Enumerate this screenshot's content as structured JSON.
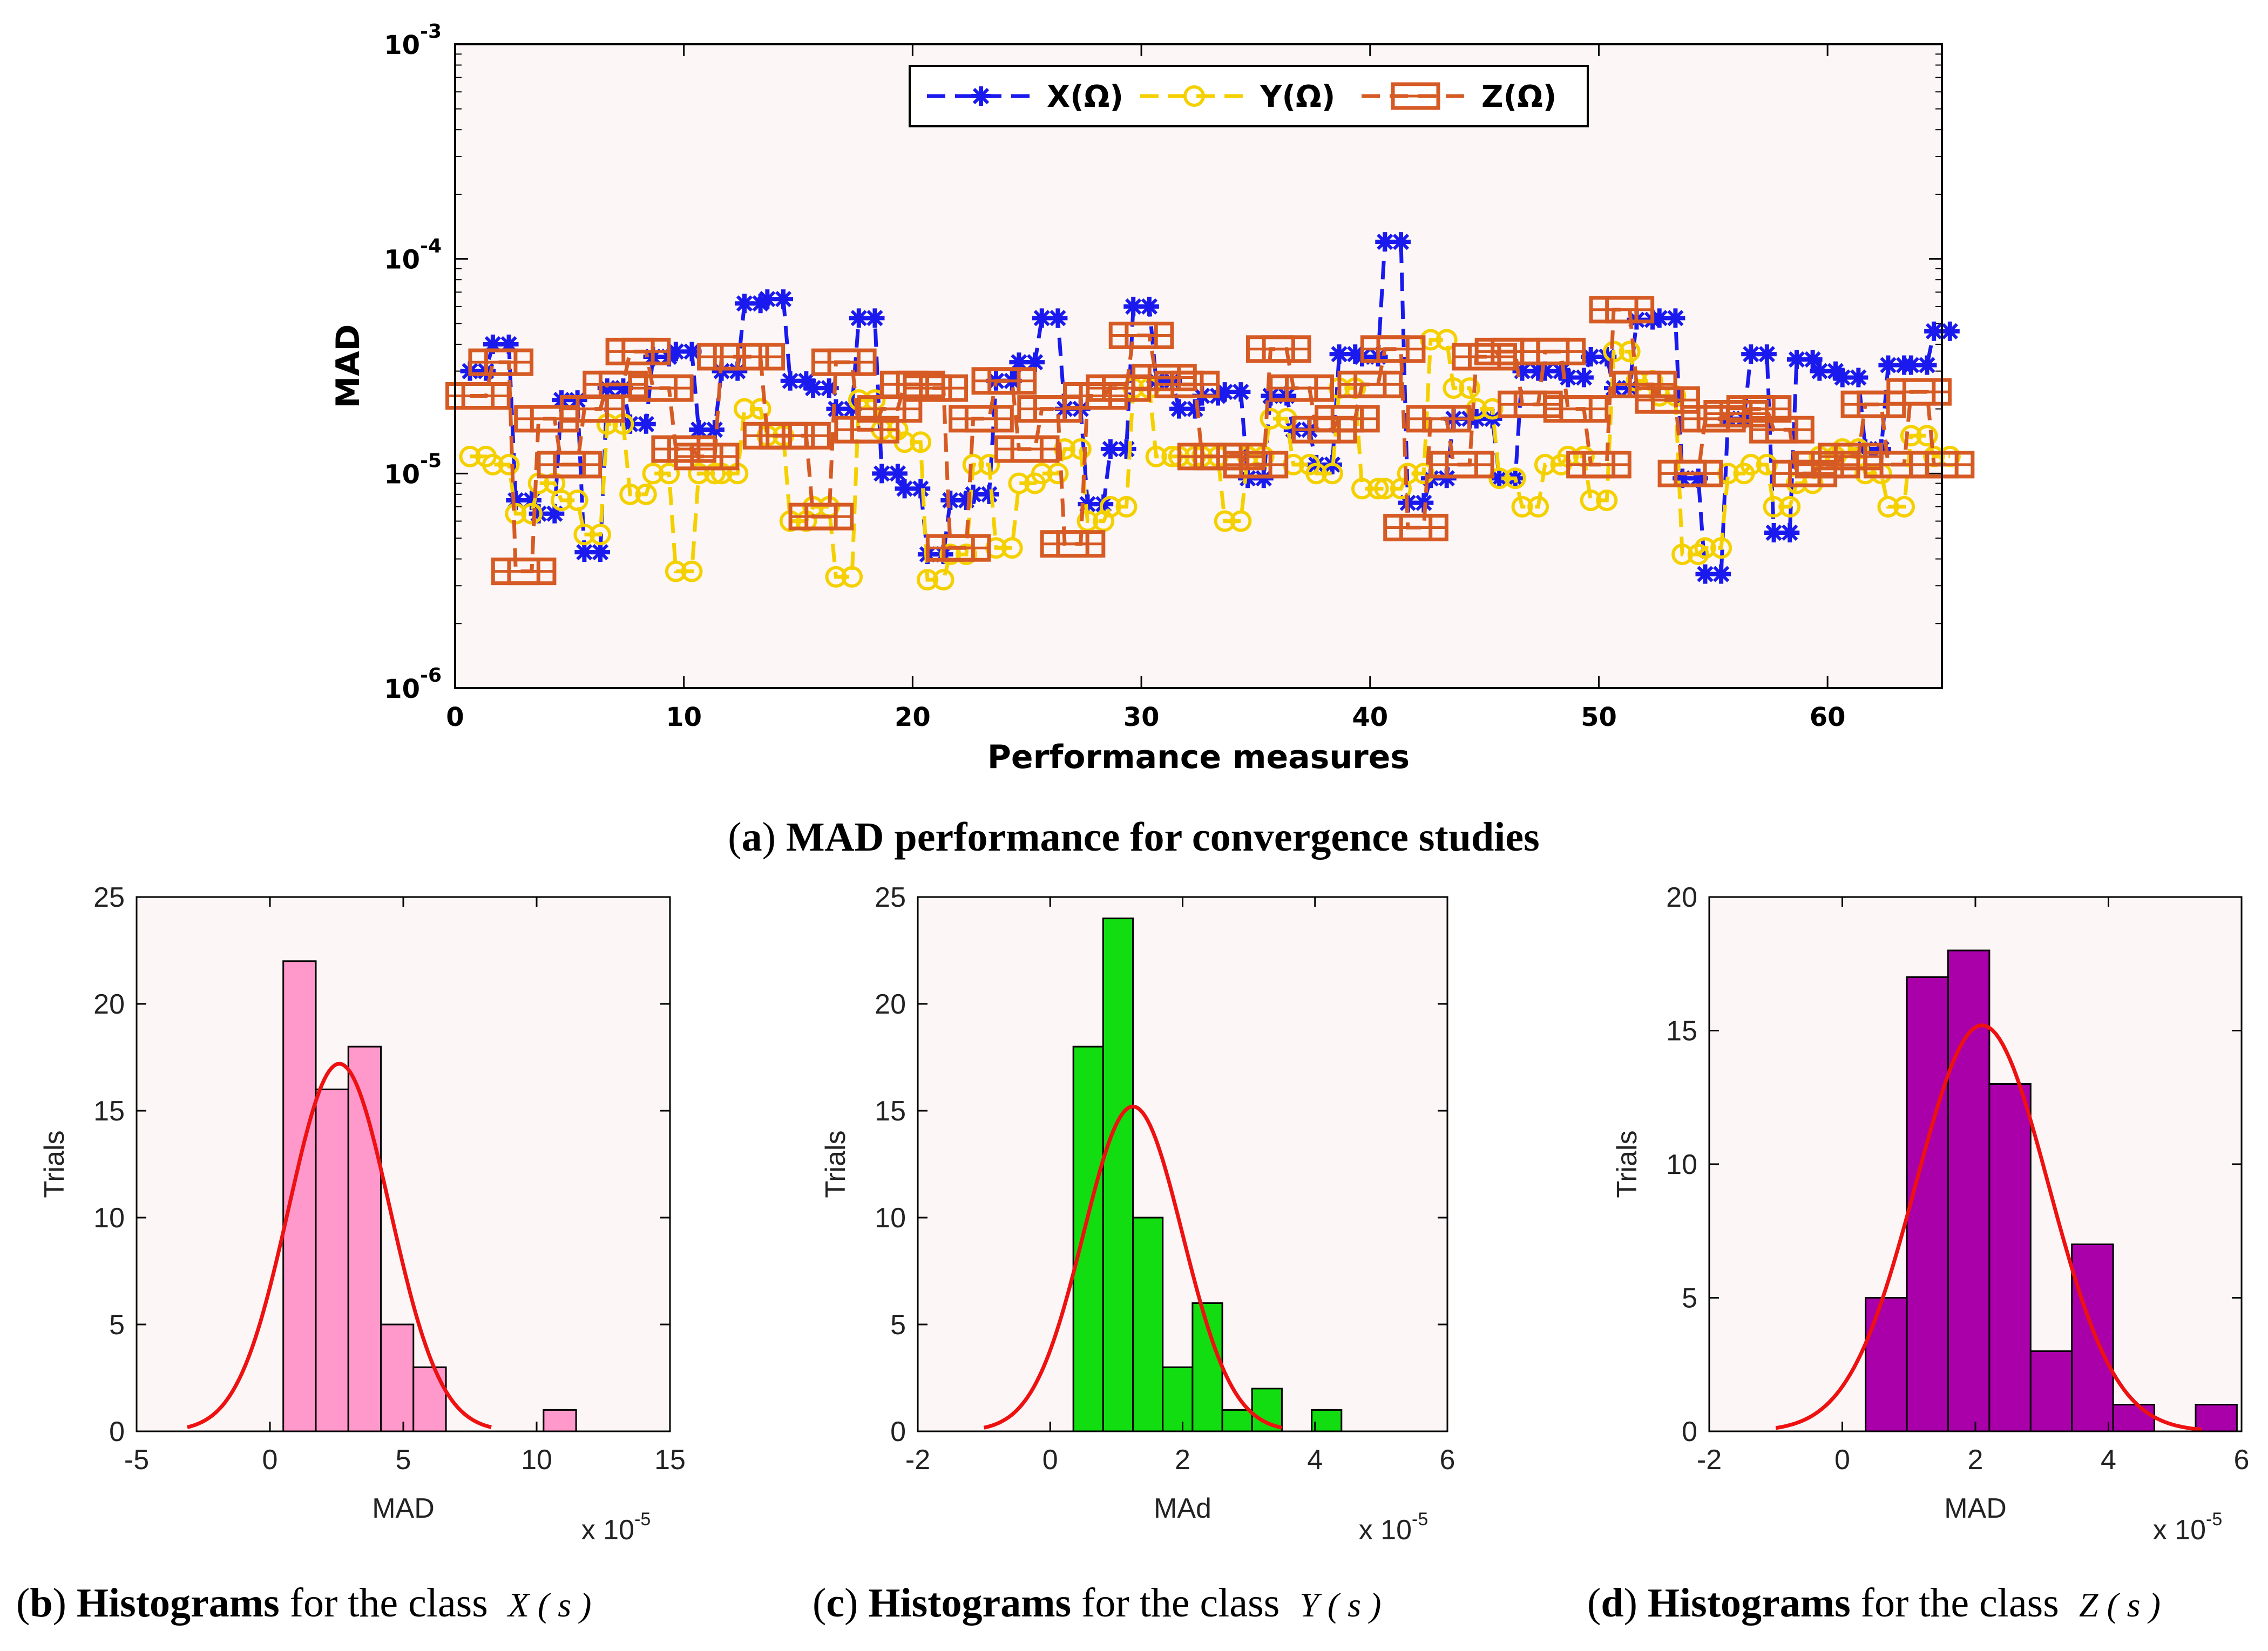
{
  "chart_data": [
    {
      "type": "line",
      "panel": "a",
      "caption_prefix": "(",
      "caption_letter": "a",
      "caption_mid": ") ",
      "caption_bold": "MAD performance for convergence studies",
      "xlabel": "Performance measures",
      "ylabel": "MAD",
      "yscale": "log",
      "xlim": [
        0,
        65
      ],
      "ylim_exp": [
        -6,
        -3
      ],
      "xticks": [
        0,
        10,
        20,
        30,
        40,
        50,
        60
      ],
      "xtick_labels": [
        "0",
        "10",
        "20",
        "30",
        "40",
        "50",
        "60"
      ],
      "ytick_base": "10",
      "ytick_exps": [
        "-6",
        "-5",
        "-4",
        "-3"
      ],
      "legend_position": "top-center",
      "x": [
        1,
        2,
        3,
        4,
        5,
        6,
        7,
        8,
        9,
        10,
        11,
        12,
        13,
        14,
        15,
        16,
        17,
        18,
        19,
        20,
        21,
        22,
        23,
        24,
        25,
        26,
        27,
        28,
        29,
        30,
        31,
        32,
        33,
        34,
        35,
        36,
        37,
        38,
        39,
        40,
        41,
        42,
        43,
        44,
        45,
        46,
        47,
        48,
        49,
        50,
        51,
        52,
        53,
        54,
        55,
        56,
        57,
        58,
        59,
        60,
        61,
        62,
        63,
        64,
        65
      ],
      "series": [
        {
          "name": "X(Ω)",
          "color": "#1a1aee",
          "marker": "asterisk",
          "values": [
            3e-05,
            4e-05,
            7.5e-06,
            6.5e-06,
            2.2e-05,
            4.3e-06,
            2.5e-05,
            1.7e-05,
            3.5e-05,
            3.7e-05,
            1.6e-05,
            3e-05,
            6.2e-05,
            6.5e-05,
            2.7e-05,
            2.5e-05,
            2e-05,
            5.3e-05,
            1e-05,
            8.5e-06,
            4.2e-06,
            7.5e-06,
            8e-06,
            2.7e-05,
            3.3e-05,
            5.3e-05,
            2e-05,
            7.2e-06,
            1.3e-05,
            6e-05,
            2.7e-05,
            2e-05,
            2.3e-05,
            2.4e-05,
            9.5e-06,
            2.3e-05,
            1.6e-05,
            1.1e-05,
            3.6e-05,
            3.5e-05,
            0.00012,
            7.3e-06,
            9.5e-06,
            1.8e-05,
            1.8e-05,
            9.5e-06,
            3e-05,
            3e-05,
            2.8e-05,
            3.5e-05,
            2.5e-05,
            5.2e-05,
            5.3e-05,
            9.5e-06,
            3.4e-06,
            1.8e-05,
            3.6e-05,
            5.3e-06,
            3.4e-05,
            3e-05,
            2.8e-05,
            1.3e-05,
            3.2e-05,
            3.2e-05,
            4.6e-05
          ]
        },
        {
          "name": "Y(Ω)",
          "color": "#f5d000",
          "marker": "circle",
          "values": [
            1.2e-05,
            1.1e-05,
            6.5e-06,
            9e-06,
            7.5e-06,
            5.2e-06,
            1.7e-05,
            8e-06,
            1e-05,
            3.5e-06,
            1e-05,
            1e-05,
            2e-05,
            1.5e-05,
            6e-06,
            7e-06,
            3.3e-06,
            2.2e-05,
            1.6e-05,
            1.4e-05,
            3.2e-06,
            4.2e-06,
            1.1e-05,
            4.5e-06,
            9e-06,
            1e-05,
            1.3e-05,
            6e-06,
            7e-06,
            2.5e-05,
            1.2e-05,
            1.2e-05,
            1.2e-05,
            6e-06,
            1.2e-05,
            1.8e-05,
            1.1e-05,
            1e-05,
            2.5e-05,
            8.5e-06,
            8.5e-06,
            1e-05,
            4.2e-05,
            2.5e-05,
            2e-05,
            9.5e-06,
            7e-06,
            1.1e-05,
            1.2e-05,
            7.5e-06,
            3.7e-05,
            2.7e-05,
            2.3e-05,
            4.2e-06,
            4.5e-06,
            1e-05,
            1.1e-05,
            7e-06,
            9e-06,
            1.2e-05,
            1.3e-05,
            1e-05,
            7e-06,
            1.5e-05,
            1.2e-05
          ]
        },
        {
          "name": "Z(Ω)",
          "color": "#d65a23",
          "marker": "square",
          "values": [
            2.3e-05,
            3.3e-05,
            3.5e-06,
            1.8e-05,
            1.1e-05,
            2e-05,
            2.6e-05,
            3.7e-05,
            2.5e-05,
            1.3e-05,
            1.2e-05,
            3.5e-05,
            3.5e-05,
            1.5e-05,
            1.5e-05,
            6.3e-06,
            3.3e-05,
            1.6e-05,
            2e-05,
            2.6e-05,
            2.5e-05,
            4.5e-06,
            1.8e-05,
            2.7e-05,
            1.3e-05,
            2e-05,
            4.7e-06,
            2.3e-05,
            2.5e-05,
            4.4e-05,
            2.8e-05,
            2.6e-05,
            1.2e-05,
            1.2e-05,
            1.1e-05,
            3.8e-05,
            2.5e-05,
            1.6e-05,
            1.8e-05,
            2.6e-05,
            3.8e-05,
            5.6e-06,
            1.8e-05,
            1.1e-05,
            3.5e-05,
            3.7e-05,
            2.1e-05,
            3.7e-05,
            2e-05,
            1.1e-05,
            5.8e-05,
            2.6e-05,
            2.2e-05,
            1e-05,
            1.8e-05,
            1.9e-05,
            2e-05,
            1.6e-05,
            1e-05,
            1.1e-05,
            1.2e-05,
            2.1e-05,
            1.1e-05,
            2.4e-05,
            1.1e-05
          ]
        }
      ]
    },
    {
      "type": "bar",
      "panel": "b",
      "caption_prefix": "(",
      "caption_letter": "b",
      "caption_mid": ") ",
      "caption_bold": "Histograms",
      "caption_rest": " for the class ",
      "caption_math": "X ( s )",
      "xlabel": "MAD",
      "ylabel": "Trials",
      "xscale_note": "x 10",
      "xscale_exp": "-5",
      "xlim": [
        -5,
        15
      ],
      "ylim": [
        0,
        25
      ],
      "xticks": [
        -5,
        0,
        5,
        10,
        15
      ],
      "xtick_labels": [
        "-5",
        "0",
        "5",
        "10",
        "15"
      ],
      "yticks": [
        0,
        5,
        10,
        15,
        20,
        25
      ],
      "ytick_labels": [
        "0",
        "5",
        "10",
        "15",
        "20",
        "25"
      ],
      "bar_color": "#ff99cc",
      "curve_color": "#ee1111",
      "bin_edges": [
        0.5,
        1.72,
        2.94,
        4.16,
        5.38,
        6.6,
        7.82,
        9.04,
        10.26,
        11.48
      ],
      "bin_counts": [
        22,
        16,
        18,
        5,
        3,
        0,
        0,
        0,
        1
      ],
      "curve": {
        "mean": 2.6,
        "sd": 1.9,
        "peak": 17.2,
        "range": [
          -3.1,
          8.3
        ]
      }
    },
    {
      "type": "bar",
      "panel": "c",
      "caption_prefix": "(",
      "caption_letter": "c",
      "caption_mid": ") ",
      "caption_bold": "Histograms",
      "caption_rest": " for the class ",
      "caption_math": "Y ( s )",
      "xlabel": "MAd",
      "ylabel": "Trials",
      "xscale_note": "x 10",
      "xscale_exp": "-5",
      "xlim": [
        -2,
        6
      ],
      "ylim": [
        0,
        25
      ],
      "xticks": [
        -2,
        0,
        2,
        4,
        6
      ],
      "xtick_labels": [
        "-2",
        "0",
        "2",
        "4",
        "6"
      ],
      "yticks": [
        0,
        5,
        10,
        15,
        20,
        25
      ],
      "ytick_labels": [
        "0",
        "5",
        "10",
        "15",
        "20",
        "25"
      ],
      "bar_color": "#11dd11",
      "curve_color": "#ee1111",
      "bin_edges": [
        0.35,
        0.8,
        1.25,
        1.7,
        2.15,
        2.6,
        3.05,
        3.5,
        3.95,
        4.4
      ],
      "bin_counts": [
        18,
        24,
        10,
        3,
        6,
        1,
        2,
        0,
        1
      ],
      "curve": {
        "mean": 1.25,
        "sd": 0.75,
        "peak": 15.2,
        "range": [
          -1.0,
          3.5
        ]
      }
    },
    {
      "type": "bar",
      "panel": "d",
      "caption_prefix": "(",
      "caption_letter": "d",
      "caption_mid": ") ",
      "caption_bold": "Histograms",
      "caption_rest": " for the class ",
      "caption_math": "Z ( s )",
      "xlabel": "MAD",
      "ylabel": "Trials",
      "xscale_note": "x 10",
      "xscale_exp": "-5",
      "xlim": [
        -2,
        6
      ],
      "ylim": [
        0,
        20
      ],
      "xticks": [
        -2,
        0,
        2,
        4,
        6
      ],
      "xtick_labels": [
        "-2",
        "0",
        "2",
        "4",
        "6"
      ],
      "yticks": [
        0,
        5,
        10,
        15,
        20
      ],
      "ytick_labels": [
        "0",
        "5",
        "10",
        "15",
        "20"
      ],
      "bar_color": "#aa00aa",
      "curve_color": "#ee1111",
      "bin_edges": [
        0.35,
        0.97,
        1.59,
        2.21,
        2.83,
        3.45,
        4.07,
        4.69,
        5.31,
        5.93
      ],
      "bin_counts": [
        5,
        17,
        18,
        13,
        3,
        7,
        1,
        0,
        1
      ],
      "curve": {
        "mean": 2.1,
        "sd": 1.0,
        "peak": 15.2,
        "range": [
          -1.0,
          5.4
        ]
      }
    }
  ]
}
